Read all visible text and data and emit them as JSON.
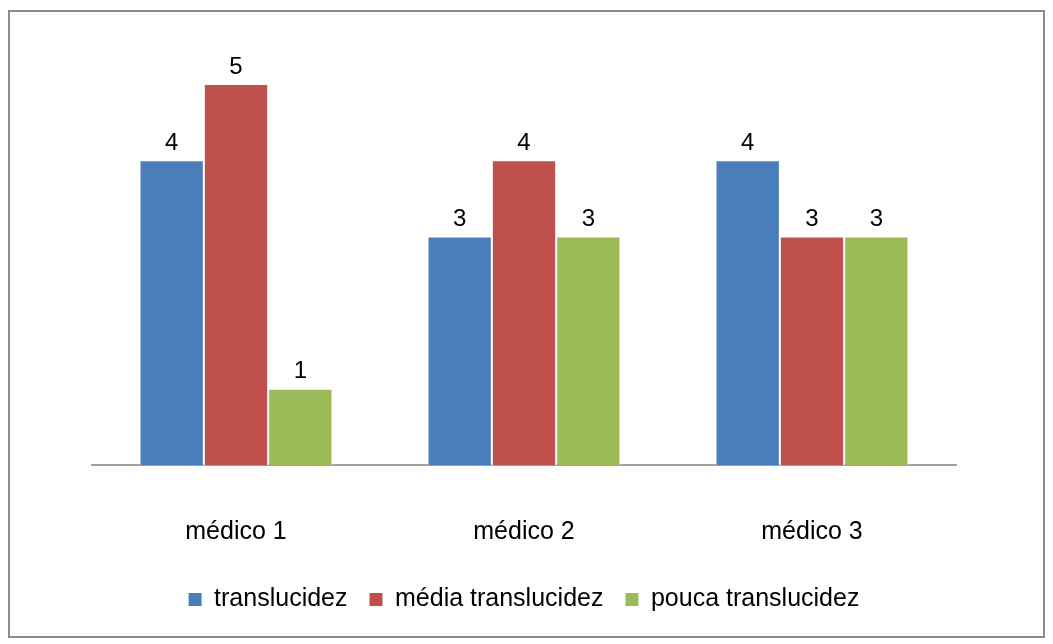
{
  "chart_data": {
    "type": "bar",
    "categories": [
      "médico 1",
      "médico 2",
      "médico 3"
    ],
    "series": [
      {
        "name": "translucidez",
        "color": "#4a7ebb",
        "values": [
          4,
          3,
          4
        ]
      },
      {
        "name": "média translucidez",
        "color": "#c0504d",
        "values": [
          5,
          4,
          3
        ]
      },
      {
        "name": "pouca translucidez",
        "color": "#9bbb59",
        "values": [
          1,
          3,
          3
        ]
      }
    ],
    "data_labels": true,
    "legend": "bottom",
    "grid": false
  }
}
